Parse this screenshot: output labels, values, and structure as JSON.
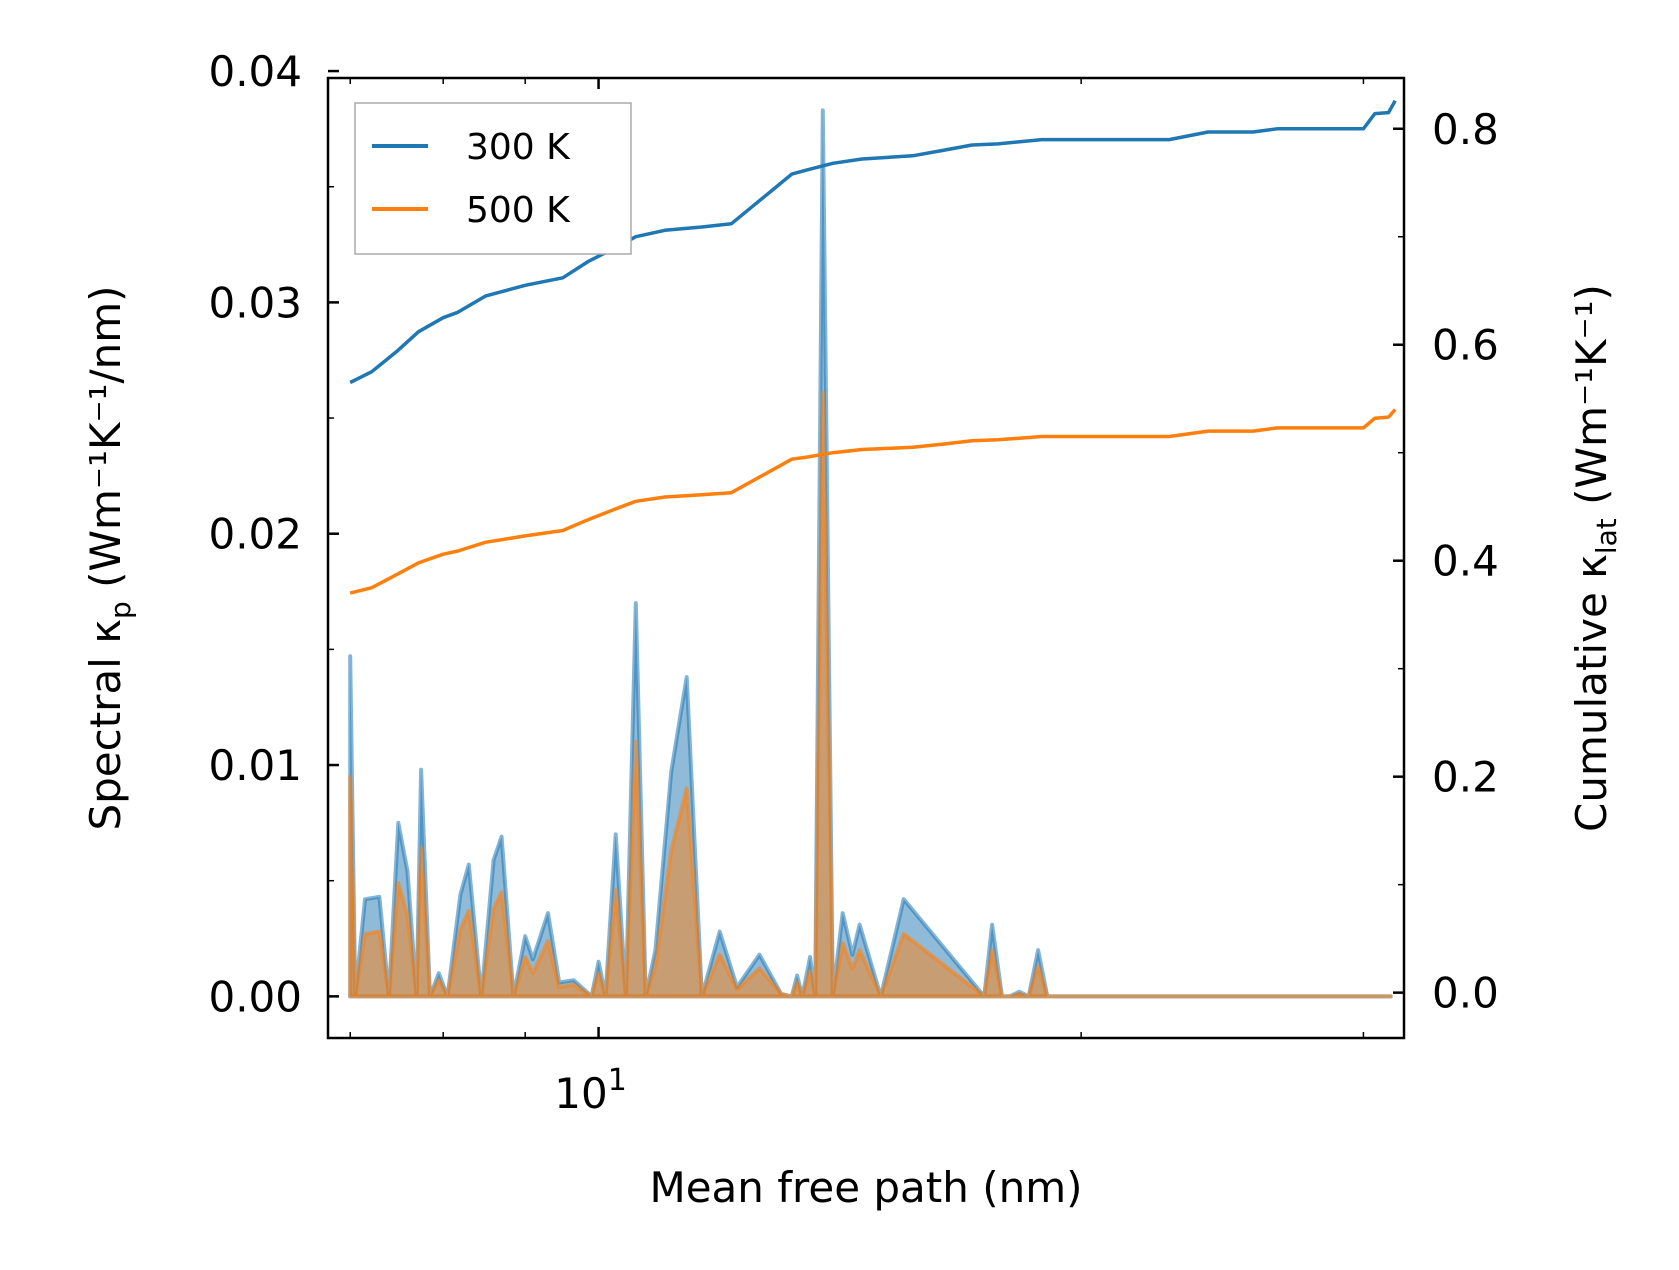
{
  "chart_data": {
    "type": "line",
    "xlabel": "Mean free path (nm)",
    "xscale": "log",
    "xlim": [
      6.78,
      31.8
    ],
    "x_ticks": [
      {
        "value": 10,
        "label": "10",
        "exp": "1"
      }
    ],
    "ylabel_left": {
      "main": "Spectral κ",
      "sub": "p",
      "unit": "(Wm⁻¹K⁻¹/nm)"
    },
    "ylabel_right": {
      "main": "Cumulative κ",
      "sub": "lat",
      "unit": "(Wm⁻¹K⁻¹)"
    },
    "ylim_left": [
      -0.0018,
      0.0397
    ],
    "ylim_right": [
      -0.042,
      0.847
    ],
    "yticks_left": [
      "0.00",
      "0.01",
      "0.02",
      "0.03",
      "0.04"
    ],
    "yticks_right": [
      "0.0",
      "0.2",
      "0.4",
      "0.6",
      "0.8"
    ],
    "legend": {
      "position": "top-left",
      "entries": [
        "300 K",
        "500 K"
      ]
    },
    "series": [
      {
        "name": "300 K",
        "color": "#1f77b4",
        "cumulative": {
          "x": [
            7.0,
            7.22,
            7.5,
            7.72,
            8.0,
            8.17,
            8.5,
            9.0,
            9.5,
            9.85,
            10.25,
            10.55,
            11.0,
            11.6,
            12.1,
            13.2,
            13.5,
            14.0,
            14.6,
            15.7,
            16.4,
            17.1,
            17.75,
            18.9,
            21.9,
            22.7,
            24.0,
            25.6,
            26.5,
            30.0,
            30.5,
            31.1,
            31.4
          ],
          "y": [
            0.565,
            0.575,
            0.595,
            0.612,
            0.625,
            0.63,
            0.645,
            0.655,
            0.662,
            0.677,
            0.69,
            0.7,
            0.706,
            0.709,
            0.712,
            0.758,
            0.762,
            0.768,
            0.772,
            0.775,
            0.78,
            0.785,
            0.786,
            0.79,
            0.79,
            0.79,
            0.797,
            0.797,
            0.8,
            0.8,
            0.814,
            0.815,
            0.826
          ]
        },
        "spectral": {
          "x": [
            7.0,
            7.05,
            7.15,
            7.3,
            7.4,
            7.5,
            7.6,
            7.7,
            7.75,
            7.85,
            7.95,
            8.05,
            8.2,
            8.3,
            8.45,
            8.6,
            8.7,
            8.85,
            9.0,
            9.1,
            9.3,
            9.45,
            9.65,
            9.9,
            10.0,
            10.1,
            10.25,
            10.4,
            10.55,
            10.7,
            10.85,
            11.1,
            11.35,
            11.6,
            11.9,
            12.2,
            12.6,
            13.0,
            13.2,
            13.3,
            13.4,
            13.55,
            13.65,
            13.8,
            14.0,
            14.2,
            14.4,
            14.55,
            15.0,
            15.5,
            17.4,
            17.6,
            17.85,
            18.05,
            18.3,
            18.55,
            18.8,
            19.05,
            19.3,
            19.55,
            19.75,
            24.5,
            24.7,
            24.9,
            25.1,
            25.3,
            25.5,
            25.8,
            26.1,
            26.6,
            29.0,
            29.3,
            29.6,
            29.85,
            30.05,
            30.3,
            30.6,
            30.9,
            31.2
          ],
          "y": [
            0.0147,
            0.0,
            0.0042,
            0.0043,
            0.0,
            0.0075,
            0.0054,
            0.0,
            0.0098,
            0.0,
            0.001,
            0.0,
            0.0044,
            0.0057,
            0.0,
            0.0059,
            0.0069,
            0.0,
            0.0026,
            0.0016,
            0.0036,
            0.0006,
            0.0007,
            0.0,
            0.0015,
            0.0,
            0.007,
            0.0,
            0.017,
            0.0,
            0.002,
            0.0097,
            0.0138,
            0.0,
            0.0028,
            0.0004,
            0.0018,
            0.0001,
            0.0,
            0.0009,
            0.0,
            0.0017,
            0.0,
            0.0383,
            0.0,
            0.0036,
            0.0018,
            0.0031,
            0.0,
            0.0042,
            0.0,
            0.0031,
            0.0,
            0.0,
            0.0002,
            0.0,
            0.002,
            0.0,
            0.0,
            0.0,
            0.0,
            0.0,
            0.0,
            0.0,
            0.0,
            0.0,
            0.0,
            0.0,
            0.0,
            0.0,
            0.0,
            0.0,
            0.0,
            0.0,
            0.0,
            0.0,
            0.0,
            0.0,
            0.0
          ]
        }
      },
      {
        "name": "500 K",
        "color": "#ff7f0e",
        "cumulative": {
          "x": [
            7.0,
            7.22,
            7.5,
            7.72,
            8.0,
            8.17,
            8.5,
            9.0,
            9.5,
            9.85,
            10.25,
            10.55,
            11.0,
            11.6,
            12.1,
            13.2,
            13.5,
            14.0,
            14.6,
            15.7,
            16.4,
            17.1,
            17.75,
            18.9,
            21.9,
            22.7,
            24.0,
            25.6,
            26.5,
            30.0,
            30.5,
            31.1,
            31.4
          ],
          "y": [
            0.37,
            0.375,
            0.388,
            0.398,
            0.406,
            0.409,
            0.417,
            0.423,
            0.428,
            0.438,
            0.448,
            0.455,
            0.459,
            0.461,
            0.463,
            0.494,
            0.496,
            0.5,
            0.503,
            0.505,
            0.508,
            0.511,
            0.512,
            0.515,
            0.515,
            0.515,
            0.52,
            0.52,
            0.523,
            0.523,
            0.532,
            0.533,
            0.54
          ]
        },
        "spectral": {
          "x": [
            7.0,
            7.05,
            7.15,
            7.3,
            7.4,
            7.5,
            7.6,
            7.7,
            7.75,
            7.85,
            7.95,
            8.05,
            8.2,
            8.3,
            8.45,
            8.6,
            8.7,
            8.85,
            9.0,
            9.1,
            9.3,
            9.45,
            9.65,
            9.9,
            10.0,
            10.1,
            10.25,
            10.4,
            10.55,
            10.7,
            10.85,
            11.1,
            11.35,
            11.6,
            11.9,
            12.2,
            12.6,
            13.0,
            13.2,
            13.3,
            13.4,
            13.55,
            13.65,
            13.8,
            14.0,
            14.2,
            14.4,
            14.55,
            15.0,
            15.5,
            17.4,
            17.6,
            17.85,
            18.05,
            18.3,
            18.55,
            18.8,
            19.05,
            19.3,
            19.55,
            19.75,
            24.5,
            24.7,
            24.9,
            25.1,
            25.3,
            25.5,
            25.8,
            26.1,
            26.6,
            29.0,
            29.3,
            29.6,
            29.85,
            30.05,
            30.3,
            30.6,
            30.9,
            31.2
          ],
          "y": [
            0.0095,
            0.0,
            0.0027,
            0.0028,
            0.0,
            0.0049,
            0.0035,
            0.0,
            0.0064,
            0.0,
            0.0007,
            0.0,
            0.0029,
            0.0037,
            0.0,
            0.0038,
            0.0045,
            0.0,
            0.0017,
            0.001,
            0.0024,
            0.0004,
            0.0005,
            0.0,
            0.001,
            0.0,
            0.0046,
            0.0,
            0.011,
            0.0,
            0.0013,
            0.0063,
            0.009,
            0.0,
            0.0018,
            0.0003,
            0.0012,
            0.0001,
            0.0,
            0.0006,
            0.0,
            0.0011,
            0.0,
            0.0261,
            0.0,
            0.0023,
            0.0012,
            0.002,
            0.0,
            0.0027,
            0.0,
            0.002,
            0.0,
            0.0,
            0.0001,
            0.0,
            0.0013,
            0.0,
            0.0,
            0.0,
            0.0,
            0.0,
            0.0,
            0.0,
            0.0,
            0.0,
            0.0,
            0.0,
            0.0,
            0.0,
            0.0,
            0.0,
            0.0,
            0.0,
            0.0,
            0.0,
            0.0,
            0.0,
            0.0
          ]
        }
      }
    ]
  }
}
